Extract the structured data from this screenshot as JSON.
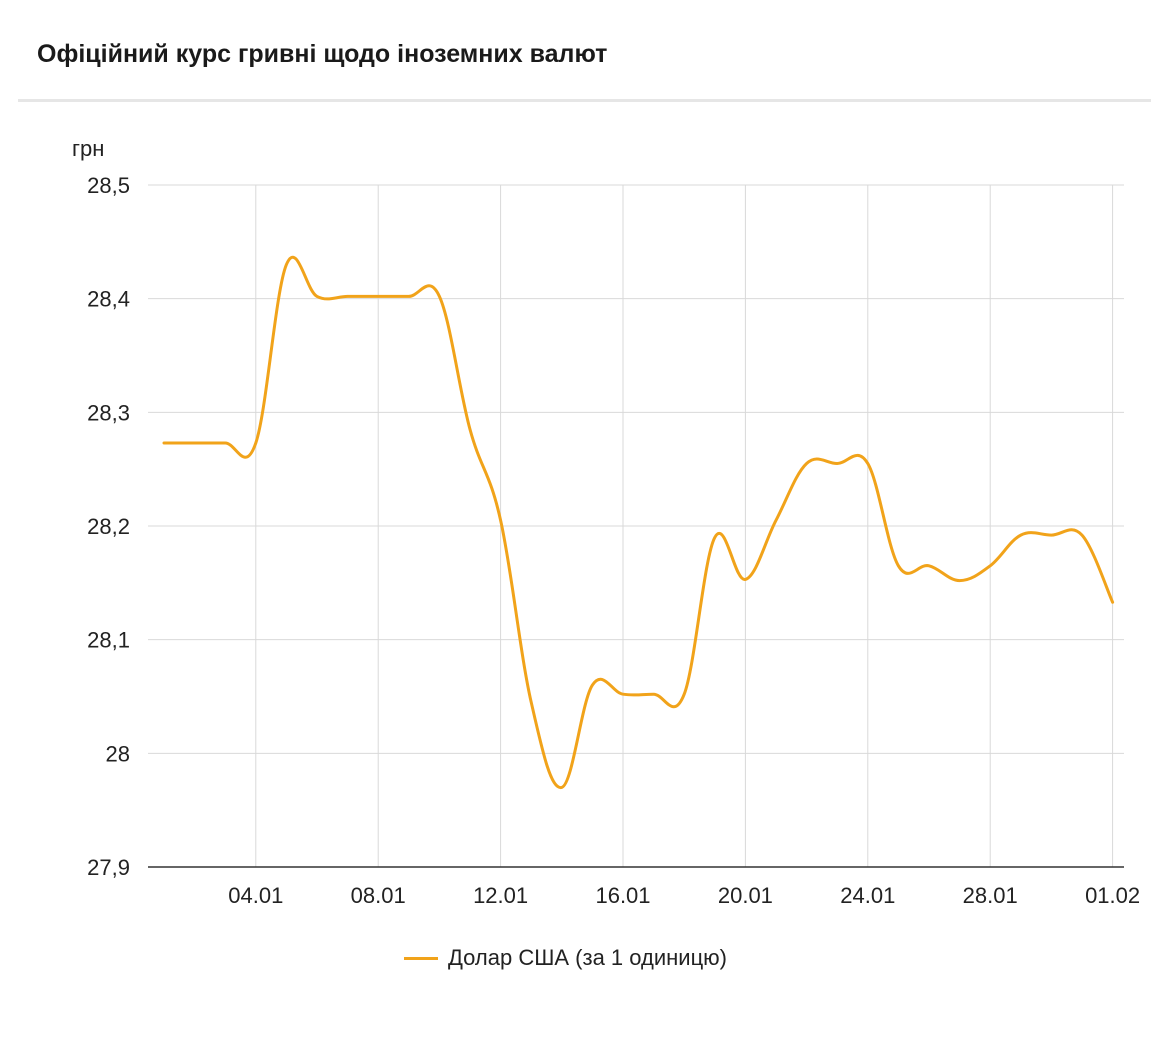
{
  "header": {
    "title": "Офіційний курс гривні щодо іноземних валют"
  },
  "colors": {
    "series": "#f1a31a",
    "grid": "#d9d9d9",
    "text": "#222222"
  },
  "chart_data": {
    "type": "line",
    "title": "Офіційний курс гривні щодо іноземних валют",
    "ylabel": "грн",
    "xlabel": "",
    "ylim": [
      27.9,
      28.5
    ],
    "yticks": [
      {
        "value": 28.5,
        "label": "28,5"
      },
      {
        "value": 28.4,
        "label": "28,4"
      },
      {
        "value": 28.3,
        "label": "28,3"
      },
      {
        "value": 28.2,
        "label": "28,2"
      },
      {
        "value": 28.1,
        "label": "28,1"
      },
      {
        "value": 28.0,
        "label": "28"
      },
      {
        "value": 27.9,
        "label": "27,9"
      }
    ],
    "xticks": [
      "04.01",
      "08.01",
      "12.01",
      "16.01",
      "20.01",
      "24.01",
      "28.01",
      "01.02"
    ],
    "x": [
      "01.01",
      "02.01",
      "03.01",
      "04.01",
      "05.01",
      "06.01",
      "07.01",
      "08.01",
      "09.01",
      "10.01",
      "11.01",
      "12.01",
      "13.01",
      "14.01",
      "15.01",
      "16.01",
      "17.01",
      "18.01",
      "19.01",
      "20.01",
      "21.01",
      "22.01",
      "23.01",
      "24.01",
      "25.01",
      "26.01",
      "27.01",
      "28.01",
      "29.01",
      "30.01",
      "31.01",
      "01.02",
      "02.02"
    ],
    "legend": "bottom",
    "grid": true,
    "series": [
      {
        "name": "Долар США (за 1 одиницю)",
        "values": [
          28.273,
          28.273,
          28.273,
          28.273,
          28.43,
          28.402,
          28.402,
          28.402,
          28.402,
          28.402,
          28.285,
          28.205,
          28.045,
          27.97,
          28.06,
          28.052,
          28.052,
          28.052,
          28.19,
          28.153,
          28.205,
          28.255,
          28.255,
          28.255,
          28.165,
          28.165,
          28.152,
          28.165,
          28.192,
          28.192,
          28.192,
          28.133,
          null
        ]
      }
    ]
  }
}
